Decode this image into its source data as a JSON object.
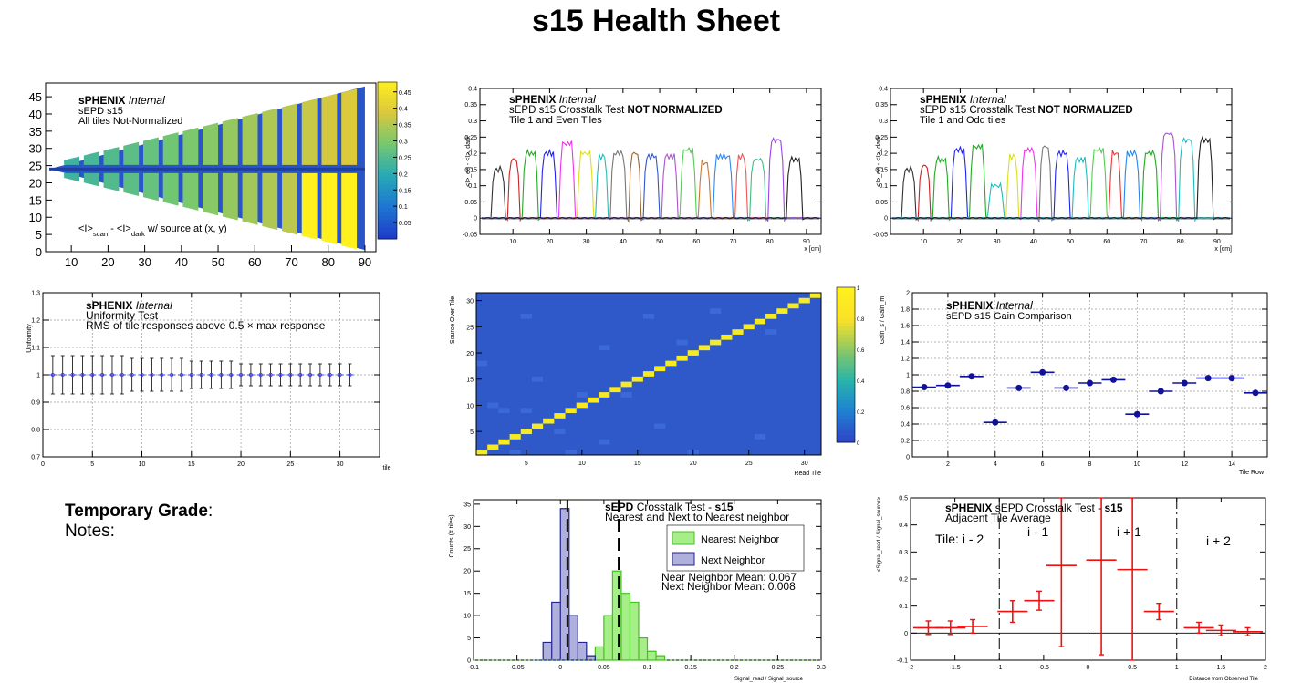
{
  "page": {
    "title": "s15 Health Sheet"
  },
  "grade": {
    "label": "Temporary Grade",
    "colon": ":",
    "notes": "Notes:"
  },
  "colors": {
    "nearest": "#a6ee88",
    "nearest_edge": "#44c022",
    "next": "#b0b0dd",
    "next_edge": "#22238e",
    "gain_marker": "#12119a",
    "adjacent": "#ee1111",
    "uniformity_marker": "#3a3ee0"
  },
  "chart_data": [
    {
      "id": "map",
      "type": "heatmap",
      "texts": [
        "sPHENIX",
        "Internal",
        "sEPD s15",
        "All tiles Not-Normalized"
      ],
      "annotation": {
        "main": "<I>",
        "sub1": "scan",
        "mid": " - <I>",
        "sub2": "dark",
        "tail": " w/ source at (x, y)"
      },
      "xticks": [
        "10",
        "20",
        "30",
        "40",
        "50",
        "60",
        "70",
        "80",
        "90"
      ],
      "yticks": [
        "0",
        "5",
        "10",
        "15",
        "20",
        "25",
        "30",
        "35",
        "40",
        "45"
      ],
      "colorbar_ticks": [
        "0.05",
        "0.1",
        "0.15",
        "0.2",
        "0.25",
        "0.3",
        "0.35",
        "0.4",
        "0.45"
      ],
      "xlim": [
        3,
        93
      ],
      "ylim": [
        0,
        49
      ],
      "zlim": [
        0,
        0.48
      ]
    },
    {
      "id": "xtalk-even",
      "type": "line",
      "title1": "sPHENIX",
      "title1b": "Internal",
      "title2": "sEPD s15 Crosstalk Test ",
      "title2b": "NOT NORMALIZED",
      "title3": "Tile 1 and Even Tiles",
      "xlabel": "x [cm]",
      "ylabel": "<I>_eq - <I>_dark",
      "xticks": [
        "10",
        "20",
        "30",
        "40",
        "50",
        "60",
        "70",
        "80",
        "90"
      ],
      "yticks": [
        "-0.05",
        "0",
        "0.05",
        "0.1",
        "0.15",
        "0.2",
        "0.25",
        "0.3",
        "0.35",
        "0.4"
      ],
      "xlim": [
        1,
        94
      ],
      "ylim": [
        -0.05,
        0.4
      ],
      "series": [
        {
          "color": "#333333",
          "start": 4,
          "end": 8,
          "peak": 0.15
        },
        {
          "color": "#cc2222",
          "start": 8.5,
          "end": 12,
          "peak": 0.18
        },
        {
          "color": "#22aa22",
          "start": 12.5,
          "end": 17,
          "peak": 0.2
        },
        {
          "color": "#2222ee",
          "start": 17.5,
          "end": 22,
          "peak": 0.2
        },
        {
          "color": "#ee33ee",
          "start": 22.5,
          "end": 27,
          "peak": 0.23
        },
        {
          "color": "#dddd22",
          "start": 27.5,
          "end": 32,
          "peak": 0.2
        },
        {
          "color": "#22bbbb",
          "start": 32.5,
          "end": 36,
          "peak": 0.19
        },
        {
          "color": "#777777",
          "start": 36.5,
          "end": 41,
          "peak": 0.2
        },
        {
          "color": "#996633",
          "start": 41.5,
          "end": 45,
          "peak": 0.2
        },
        {
          "color": "#3355cc",
          "start": 45.5,
          "end": 50,
          "peak": 0.19
        },
        {
          "color": "#aa55cc",
          "start": 50.5,
          "end": 55,
          "peak": 0.19
        },
        {
          "color": "#55cc55",
          "start": 55.5,
          "end": 60,
          "peak": 0.21
        },
        {
          "color": "#cc7733",
          "start": 60.5,
          "end": 64,
          "peak": 0.17
        },
        {
          "color": "#3388ee",
          "start": 64.5,
          "end": 70,
          "peak": 0.19
        },
        {
          "color": "#ee5555",
          "start": 70.5,
          "end": 74,
          "peak": 0.19
        },
        {
          "color": "#44bb88",
          "start": 74.5,
          "end": 79,
          "peak": 0.18
        },
        {
          "color": "#9944ee",
          "start": 79.5,
          "end": 84,
          "peak": 0.24
        },
        {
          "color": "#222222",
          "start": 84.5,
          "end": 89,
          "peak": 0.18
        }
      ]
    },
    {
      "id": "xtalk-odd",
      "type": "line",
      "title1": "sPHENIX",
      "title1b": "Internal",
      "title2": "sEPD s15 Crosstalk Test ",
      "title2b": "NOT NORMALIZED",
      "title3": "Tile 1 and Odd tiles",
      "xlabel": "x [cm]",
      "ylabel": "<I>_eq - <I>_dark",
      "xticks": [
        "10",
        "20",
        "30",
        "40",
        "50",
        "60",
        "70",
        "80",
        "90"
      ],
      "yticks": [
        "-0.05",
        "0",
        "0.05",
        "0.1",
        "0.15",
        "0.2",
        "0.25",
        "0.3",
        "0.35",
        "0.4"
      ],
      "xlim": [
        1,
        94
      ],
      "ylim": [
        -0.05,
        0.4
      ],
      "series": [
        {
          "color": "#333333",
          "start": 4,
          "end": 8,
          "peak": 0.15
        },
        {
          "color": "#cc2222",
          "start": 8.5,
          "end": 12,
          "peak": 0.16
        },
        {
          "color": "#22aa22",
          "start": 12.5,
          "end": 17,
          "peak": 0.18
        },
        {
          "color": "#2222ee",
          "start": 17.5,
          "end": 22,
          "peak": 0.21
        },
        {
          "color": "#22aa22",
          "start": 22.5,
          "end": 27,
          "peak": 0.22
        },
        {
          "color": "#22bbbb",
          "start": 27.5,
          "end": 32,
          "peak": 0.1
        },
        {
          "color": "#dddd22",
          "start": 32.5,
          "end": 36,
          "peak": 0.19
        },
        {
          "color": "#ee33ee",
          "start": 36.5,
          "end": 41,
          "peak": 0.21
        },
        {
          "color": "#777777",
          "start": 41.5,
          "end": 45,
          "peak": 0.22
        },
        {
          "color": "#2222ee",
          "start": 45.5,
          "end": 50,
          "peak": 0.2
        },
        {
          "color": "#22bbbb",
          "start": 50.5,
          "end": 55,
          "peak": 0.18
        },
        {
          "color": "#55cc55",
          "start": 55.5,
          "end": 60,
          "peak": 0.21
        },
        {
          "color": "#ee3333",
          "start": 60.5,
          "end": 64,
          "peak": 0.2
        },
        {
          "color": "#2288ee",
          "start": 64.5,
          "end": 69,
          "peak": 0.2
        },
        {
          "color": "#22aa22",
          "start": 69.5,
          "end": 74,
          "peak": 0.2
        },
        {
          "color": "#aa55cc",
          "start": 74.5,
          "end": 79,
          "peak": 0.26
        },
        {
          "color": "#22bbbb",
          "start": 79.5,
          "end": 84,
          "peak": 0.24
        },
        {
          "color": "#222222",
          "start": 84.5,
          "end": 89,
          "peak": 0.24
        }
      ]
    },
    {
      "id": "uniformity",
      "type": "scatter",
      "title1": "sPHENIX",
      "title1b": "Internal",
      "title2": "Uniformity Test",
      "title3": "RMS of tile responses above 0.5 × max response",
      "xlabel": "tile",
      "ylabel": "Uniformity",
      "xticks": [
        "0",
        "5",
        "10",
        "15",
        "20",
        "25",
        "30"
      ],
      "yticks": [
        "0.7",
        "0.8",
        "0.9",
        "1",
        "1.1",
        "1.2",
        "1.3"
      ],
      "xlim": [
        0,
        34
      ],
      "ylim": [
        0.7,
        1.3
      ],
      "x": [
        1,
        2,
        3,
        4,
        5,
        6,
        7,
        8,
        9,
        10,
        11,
        12,
        13,
        14,
        15,
        16,
        17,
        18,
        19,
        20,
        21,
        22,
        23,
        24,
        25,
        26,
        27,
        28,
        29,
        30,
        31
      ],
      "y": [
        1,
        1,
        1,
        1,
        1,
        1,
        1,
        1,
        1,
        1,
        1,
        1,
        1,
        1,
        1,
        1,
        1,
        1,
        1,
        1,
        1,
        1,
        1,
        1,
        1,
        1,
        1,
        1,
        1,
        1,
        1
      ],
      "err": [
        0.07,
        0.07,
        0.07,
        0.07,
        0.07,
        0.07,
        0.07,
        0.07,
        0.06,
        0.06,
        0.06,
        0.06,
        0.06,
        0.06,
        0.05,
        0.05,
        0.05,
        0.05,
        0.05,
        0.04,
        0.04,
        0.04,
        0.04,
        0.04,
        0.04,
        0.04,
        0.04,
        0.04,
        0.04,
        0.04,
        0.04
      ]
    },
    {
      "id": "crosstalk-matrix",
      "type": "heatmap",
      "xlabel": "Read Tile",
      "ylabel": "Source Over Tile",
      "xticks": [
        "5",
        "10",
        "15",
        "20",
        "25",
        "30"
      ],
      "yticks": [
        "5",
        "10",
        "15",
        "20",
        "25",
        "30"
      ],
      "colorbar_ticks": [
        "0",
        "0.2",
        "0.4",
        "0.6",
        "0.8",
        "1"
      ],
      "xlim": [
        0.5,
        31.5
      ],
      "ylim": [
        0.5,
        31.5
      ],
      "zlim": [
        0,
        1
      ],
      "diagonal_value": 1,
      "offdiag": [
        [
          4,
          1
        ],
        [
          9,
          1
        ],
        [
          20,
          1
        ],
        [
          8,
          5
        ],
        [
          3,
          9
        ],
        [
          5,
          9
        ],
        [
          10,
          12
        ],
        [
          14,
          12
        ],
        [
          6,
          15
        ],
        [
          12,
          21
        ],
        [
          19,
          22
        ],
        [
          27,
          24
        ],
        [
          5,
          27
        ],
        [
          16,
          27
        ],
        [
          22,
          28
        ],
        [
          1,
          18
        ],
        [
          2,
          10
        ],
        [
          26,
          4
        ],
        [
          12,
          3
        ],
        [
          17,
          6
        ]
      ]
    },
    {
      "id": "gain",
      "type": "scatter",
      "title1": "sPHENIX",
      "title1b": "Internal",
      "title2": "sEPD s15 Gain Comparison",
      "xlabel": "Tile Row",
      "ylabel": "Gain_s / Gain_m",
      "xticks": [
        "2",
        "4",
        "6",
        "8",
        "10",
        "12",
        "14"
      ],
      "yticks": [
        "0",
        "0.2",
        "0.4",
        "0.6",
        "0.8",
        "1",
        "1.2",
        "1.4",
        "1.6",
        "1.8",
        "2"
      ],
      "xlim": [
        0.5,
        15.5
      ],
      "ylim": [
        0,
        2
      ],
      "x": [
        1,
        2,
        3,
        4,
        5,
        6,
        7,
        8,
        9,
        10,
        11,
        12,
        13,
        14,
        15
      ],
      "y": [
        0.85,
        0.87,
        0.98,
        0.42,
        0.84,
        1.03,
        0.84,
        0.9,
        0.94,
        0.52,
        0.8,
        0.9,
        0.96,
        0.96,
        0.78
      ]
    },
    {
      "id": "hist",
      "type": "bar",
      "title1": "sEPD",
      "title1b": " Crosstalk Test - ",
      "title1c": "s15",
      "title2": "Nearest and Next to Nearest neighbor",
      "xlabel": "Signal_read / Signal_source",
      "ylabel": "Counts (# tiles)",
      "xticks": [
        "-0.1",
        "-0.05",
        "0",
        "0.05",
        "0.1",
        "0.15",
        "0.2",
        "0.25",
        "0.3"
      ],
      "yticks": [
        "0",
        "5",
        "10",
        "15",
        "20",
        "25",
        "30",
        "35"
      ],
      "xlim": [
        -0.1,
        0.3
      ],
      "ylim": [
        0,
        36
      ],
      "bin_width": 0.01,
      "series": [
        {
          "name": "Nearest Neighbor",
          "bins": [
            0.04,
            0.05,
            0.06,
            0.07,
            0.08,
            0.09,
            0.1,
            0.11
          ],
          "values": [
            3,
            10,
            20,
            15,
            13,
            5,
            2,
            1
          ]
        },
        {
          "name": "Next Neighbor",
          "bins": [
            -0.03,
            -0.02,
            -0.01,
            0.0,
            0.01,
            0.02,
            0.03
          ],
          "values": [
            0,
            4,
            13,
            34,
            10,
            4,
            1
          ]
        }
      ],
      "means": [
        0.067,
        0.008
      ],
      "mean_text1": "Near Neighbor Mean: 0.067",
      "mean_text2": "Next Neighbor Mean: 0.008"
    },
    {
      "id": "adjacent",
      "type": "scatter",
      "title1": "sPHENIX",
      "title1b": " sEPD Crosstalk Test - ",
      "title1c": "s15",
      "title2": "Adjacent Tile Average",
      "xlabel": "Distance from Observed Tile",
      "ylabel": "<Signal_read / Signal_source>",
      "xticks": [
        "-2",
        "-1.5",
        "-1",
        "-0.5",
        "0",
        "0.5",
        "1",
        "1.5",
        "2"
      ],
      "yticks": [
        "-0.1",
        "0",
        "0.1",
        "0.2",
        "0.3",
        "0.4",
        "0.5"
      ],
      "xlim": [
        -2,
        2
      ],
      "ylim": [
        -0.1,
        0.5
      ],
      "region_labels": [
        "Tile: i - 2",
        "i - 1",
        "i + 1",
        "i + 2"
      ],
      "x": [
        -1.8,
        -1.55,
        -1.3,
        -0.85,
        -0.55,
        -0.3,
        0.15,
        0.5,
        0.8,
        1.25,
        1.5,
        1.8
      ],
      "y": [
        0.02,
        0.02,
        0.025,
        0.08,
        0.12,
        0.25,
        0.27,
        0.235,
        0.08,
        0.02,
        0.01,
        0.005
      ],
      "yerr": [
        0.025,
        0.025,
        0.025,
        0.04,
        0.035,
        0.3,
        0.35,
        0.35,
        0.03,
        0.02,
        0.02,
        0.015
      ]
    }
  ]
}
